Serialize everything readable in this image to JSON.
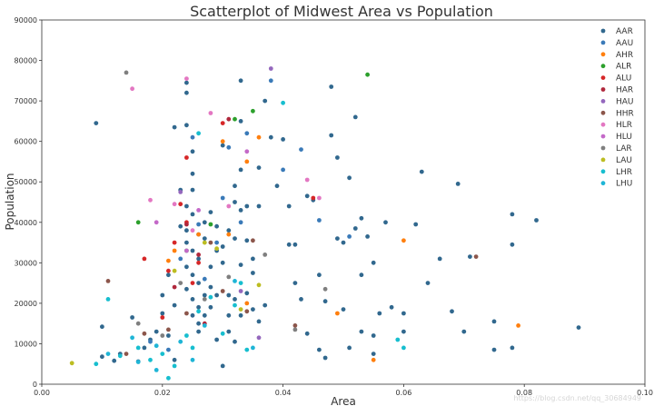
{
  "chart_data": {
    "type": "scatter",
    "title": "Scatterplot of Midwest Area vs Population",
    "xlabel": "Area",
    "ylabel": "Population",
    "xlim": [
      0.0,
      0.1
    ],
    "ylim": [
      0,
      90000
    ],
    "x_ticks": [
      "0.00",
      "0.02",
      "0.04",
      "0.06",
      "0.08",
      "0.10"
    ],
    "x_tick_values": [
      0.0,
      0.02,
      0.04,
      0.06,
      0.08,
      0.1
    ],
    "y_ticks": [
      "0",
      "10000",
      "20000",
      "30000",
      "40000",
      "50000",
      "60000",
      "70000",
      "80000",
      "90000"
    ],
    "y_tick_values": [
      0,
      10000,
      20000,
      30000,
      40000,
      50000,
      60000,
      70000,
      80000,
      90000
    ],
    "grid": false,
    "legend_position": "top-right",
    "series": [
      {
        "name": "AAR",
        "color": "#31688e",
        "points": [
          [
            0.009,
            64500
          ],
          [
            0.01,
            14200
          ],
          [
            0.01,
            6800
          ],
          [
            0.012,
            5800
          ],
          [
            0.013,
            7500
          ],
          [
            0.015,
            16500
          ],
          [
            0.016,
            5600
          ],
          [
            0.017,
            9000
          ],
          [
            0.018,
            11000
          ],
          [
            0.019,
            13000
          ],
          [
            0.02,
            17500
          ],
          [
            0.02,
            22000
          ],
          [
            0.021,
            12000
          ],
          [
            0.021,
            27000
          ],
          [
            0.022,
            6000
          ],
          [
            0.022,
            63500
          ],
          [
            0.022,
            19500
          ],
          [
            0.023,
            48000
          ],
          [
            0.023,
            39000
          ],
          [
            0.024,
            74500
          ],
          [
            0.024,
            72000
          ],
          [
            0.024,
            64000
          ],
          [
            0.024,
            44000
          ],
          [
            0.024,
            38000
          ],
          [
            0.024,
            35000
          ],
          [
            0.024,
            29000
          ],
          [
            0.024,
            23500
          ],
          [
            0.025,
            57500
          ],
          [
            0.025,
            52000
          ],
          [
            0.025,
            48000
          ],
          [
            0.025,
            42000
          ],
          [
            0.025,
            33000
          ],
          [
            0.025,
            27000
          ],
          [
            0.025,
            21000
          ],
          [
            0.025,
            17000
          ],
          [
            0.026,
            37000
          ],
          [
            0.026,
            31000
          ],
          [
            0.026,
            25000
          ],
          [
            0.026,
            19000
          ],
          [
            0.026,
            15000
          ],
          [
            0.026,
            13000
          ],
          [
            0.027,
            40000
          ],
          [
            0.027,
            36000
          ],
          [
            0.027,
            22000
          ],
          [
            0.027,
            17000
          ],
          [
            0.028,
            42500
          ],
          [
            0.028,
            29000
          ],
          [
            0.028,
            24000
          ],
          [
            0.028,
            19000
          ],
          [
            0.029,
            39000
          ],
          [
            0.029,
            33000
          ],
          [
            0.029,
            22000
          ],
          [
            0.029,
            11000
          ],
          [
            0.03,
            59000
          ],
          [
            0.03,
            34000
          ],
          [
            0.03,
            30000
          ],
          [
            0.03,
            4500
          ],
          [
            0.031,
            38000
          ],
          [
            0.031,
            22000
          ],
          [
            0.031,
            17000
          ],
          [
            0.031,
            13000
          ],
          [
            0.032,
            49000
          ],
          [
            0.032,
            45000
          ],
          [
            0.032,
            36000
          ],
          [
            0.032,
            21000
          ],
          [
            0.032,
            10500
          ],
          [
            0.033,
            75000
          ],
          [
            0.033,
            65000
          ],
          [
            0.033,
            53000
          ],
          [
            0.033,
            43000
          ],
          [
            0.033,
            29500
          ],
          [
            0.033,
            17000
          ],
          [
            0.034,
            44000
          ],
          [
            0.034,
            35500
          ],
          [
            0.034,
            22500
          ],
          [
            0.035,
            31000
          ],
          [
            0.035,
            27500
          ],
          [
            0.035,
            18500
          ],
          [
            0.036,
            53500
          ],
          [
            0.036,
            44000
          ],
          [
            0.036,
            15500
          ],
          [
            0.037,
            70000
          ],
          [
            0.037,
            19500
          ],
          [
            0.038,
            61000
          ],
          [
            0.039,
            49000
          ],
          [
            0.04,
            60500
          ],
          [
            0.041,
            44000
          ],
          [
            0.041,
            34500
          ],
          [
            0.042,
            25000
          ],
          [
            0.043,
            21000
          ],
          [
            0.044,
            46500
          ],
          [
            0.045,
            45500
          ],
          [
            0.046,
            27000
          ],
          [
            0.047,
            20500
          ],
          [
            0.048,
            73500
          ],
          [
            0.048,
            61500
          ],
          [
            0.049,
            56000
          ],
          [
            0.049,
            36000
          ],
          [
            0.05,
            35000
          ],
          [
            0.05,
            18500
          ],
          [
            0.051,
            51000
          ],
          [
            0.052,
            38500
          ],
          [
            0.052,
            66000
          ],
          [
            0.053,
            41000
          ],
          [
            0.053,
            27000
          ],
          [
            0.054,
            36500
          ],
          [
            0.055,
            30000
          ],
          [
            0.055,
            12000
          ],
          [
            0.056,
            17500
          ],
          [
            0.057,
            40000
          ],
          [
            0.058,
            19000
          ],
          [
            0.06,
            17500
          ],
          [
            0.06,
            13000
          ],
          [
            0.062,
            39500
          ],
          [
            0.063,
            52500
          ],
          [
            0.064,
            25000
          ],
          [
            0.066,
            31000
          ],
          [
            0.068,
            18000
          ],
          [
            0.069,
            49500
          ],
          [
            0.07,
            13000
          ],
          [
            0.071,
            31500
          ],
          [
            0.075,
            15500
          ],
          [
            0.075,
            8500
          ],
          [
            0.078,
            42000
          ],
          [
            0.078,
            9000
          ],
          [
            0.078,
            34500
          ],
          [
            0.082,
            40500
          ],
          [
            0.089,
            14000
          ],
          [
            0.047,
            6500
          ],
          [
            0.051,
            9000
          ],
          [
            0.053,
            13000
          ],
          [
            0.055,
            7500
          ],
          [
            0.042,
            34500
          ],
          [
            0.044,
            12500
          ],
          [
            0.046,
            8500
          ]
        ]
      },
      {
        "name": "AAU",
        "color": "#3a7ab8",
        "points": [
          [
            0.018,
            10500
          ],
          [
            0.021,
            8500
          ],
          [
            0.023,
            31000
          ],
          [
            0.025,
            61000
          ],
          [
            0.026,
            39500
          ],
          [
            0.027,
            26000
          ],
          [
            0.029,
            35000
          ],
          [
            0.03,
            46000
          ],
          [
            0.031,
            58500
          ],
          [
            0.033,
            40000
          ],
          [
            0.034,
            62000
          ],
          [
            0.038,
            75000
          ],
          [
            0.04,
            53000
          ],
          [
            0.043,
            58000
          ],
          [
            0.046,
            40500
          ],
          [
            0.051,
            36500
          ]
        ]
      },
      {
        "name": "AHR",
        "color": "#ff7f0e",
        "points": [
          [
            0.021,
            30500
          ],
          [
            0.026,
            37000
          ],
          [
            0.03,
            60000
          ],
          [
            0.031,
            37000
          ],
          [
            0.034,
            55000
          ],
          [
            0.034,
            20000
          ],
          [
            0.036,
            61000
          ],
          [
            0.049,
            17500
          ],
          [
            0.055,
            6000
          ],
          [
            0.06,
            35500
          ],
          [
            0.079,
            14500
          ],
          [
            0.022,
            33000
          ]
        ]
      },
      {
        "name": "ALR",
        "color": "#2ca02c",
        "points": [
          [
            0.016,
            40000
          ],
          [
            0.024,
            33000
          ],
          [
            0.028,
            39500
          ],
          [
            0.032,
            65500
          ],
          [
            0.035,
            67500
          ],
          [
            0.054,
            76500
          ]
        ]
      },
      {
        "name": "ALU",
        "color": "#d62728",
        "points": [
          [
            0.017,
            31000
          ],
          [
            0.02,
            16500
          ],
          [
            0.021,
            28000
          ],
          [
            0.022,
            35000
          ],
          [
            0.023,
            44500
          ],
          [
            0.024,
            56000
          ],
          [
            0.024,
            40000
          ],
          [
            0.025,
            25000
          ],
          [
            0.026,
            30000
          ],
          [
            0.03,
            64500
          ],
          [
            0.045,
            46000
          ]
        ]
      },
      {
        "name": "HAR",
        "color": "#b0283c",
        "points": [
          [
            0.022,
            24000
          ],
          [
            0.024,
            39500
          ],
          [
            0.026,
            32000
          ],
          [
            0.027,
            15000
          ],
          [
            0.031,
            65500
          ]
        ]
      },
      {
        "name": "HAU",
        "color": "#9467bd",
        "points": [
          [
            0.038,
            78000
          ],
          [
            0.023,
            47500
          ],
          [
            0.033,
            23000
          ],
          [
            0.036,
            11500
          ]
        ]
      },
      {
        "name": "HHR",
        "color": "#8c564b",
        "points": [
          [
            0.011,
            25500
          ],
          [
            0.014,
            7500
          ],
          [
            0.017,
            12500
          ],
          [
            0.021,
            13500
          ],
          [
            0.024,
            17500
          ],
          [
            0.028,
            35000
          ],
          [
            0.03,
            23000
          ],
          [
            0.034,
            18000
          ],
          [
            0.035,
            35500
          ],
          [
            0.042,
            14500
          ],
          [
            0.072,
            31500
          ]
        ]
      },
      {
        "name": "HLR",
        "color": "#e377c2",
        "points": [
          [
            0.015,
            73000
          ],
          [
            0.018,
            45500
          ],
          [
            0.022,
            44500
          ],
          [
            0.024,
            75500
          ],
          [
            0.028,
            67000
          ],
          [
            0.031,
            44000
          ],
          [
            0.044,
            50500
          ],
          [
            0.046,
            46000
          ],
          [
            0.025,
            38000
          ]
        ]
      },
      {
        "name": "HLU",
        "color": "#c469c8",
        "points": [
          [
            0.019,
            40000
          ],
          [
            0.026,
            43000
          ],
          [
            0.034,
            57500
          ],
          [
            0.024,
            33000
          ]
        ]
      },
      {
        "name": "LAR",
        "color": "#7f7f7f",
        "points": [
          [
            0.014,
            77000
          ],
          [
            0.016,
            15000
          ],
          [
            0.02,
            12000
          ],
          [
            0.023,
            25000
          ],
          [
            0.027,
            21000
          ],
          [
            0.031,
            26500
          ],
          [
            0.037,
            32000
          ],
          [
            0.042,
            13500
          ],
          [
            0.047,
            23500
          ]
        ]
      },
      {
        "name": "LAU",
        "color": "#bcbd22",
        "points": [
          [
            0.005,
            5200
          ],
          [
            0.022,
            28000
          ],
          [
            0.027,
            35000
          ],
          [
            0.029,
            33500
          ],
          [
            0.033,
            18500
          ],
          [
            0.036,
            24500
          ]
        ]
      },
      {
        "name": "LHR",
        "color": "#17becf",
        "points": [
          [
            0.009,
            5000
          ],
          [
            0.011,
            21000
          ],
          [
            0.013,
            7000
          ],
          [
            0.016,
            9000
          ],
          [
            0.018,
            6000
          ],
          [
            0.02,
            7500
          ],
          [
            0.021,
            1500
          ],
          [
            0.022,
            4500
          ],
          [
            0.024,
            12000
          ],
          [
            0.025,
            9000
          ],
          [
            0.026,
            18000
          ],
          [
            0.028,
            21500
          ],
          [
            0.03,
            12500
          ],
          [
            0.032,
            19500
          ],
          [
            0.033,
            25000
          ],
          [
            0.034,
            8500
          ],
          [
            0.04,
            69500
          ],
          [
            0.059,
            11000
          ],
          [
            0.06,
            9000
          ],
          [
            0.026,
            62000
          ]
        ]
      },
      {
        "name": "LHU",
        "color": "#1fb5d6",
        "points": [
          [
            0.011,
            7500
          ],
          [
            0.015,
            11500
          ],
          [
            0.019,
            3500
          ],
          [
            0.023,
            10500
          ],
          [
            0.025,
            6000
          ],
          [
            0.027,
            14500
          ],
          [
            0.032,
            25500
          ],
          [
            0.035,
            9000
          ],
          [
            0.019,
            9500
          ],
          [
            0.016,
            5500
          ]
        ]
      }
    ]
  },
  "watermark": "https://blog.csdn.net/qq_30684949"
}
